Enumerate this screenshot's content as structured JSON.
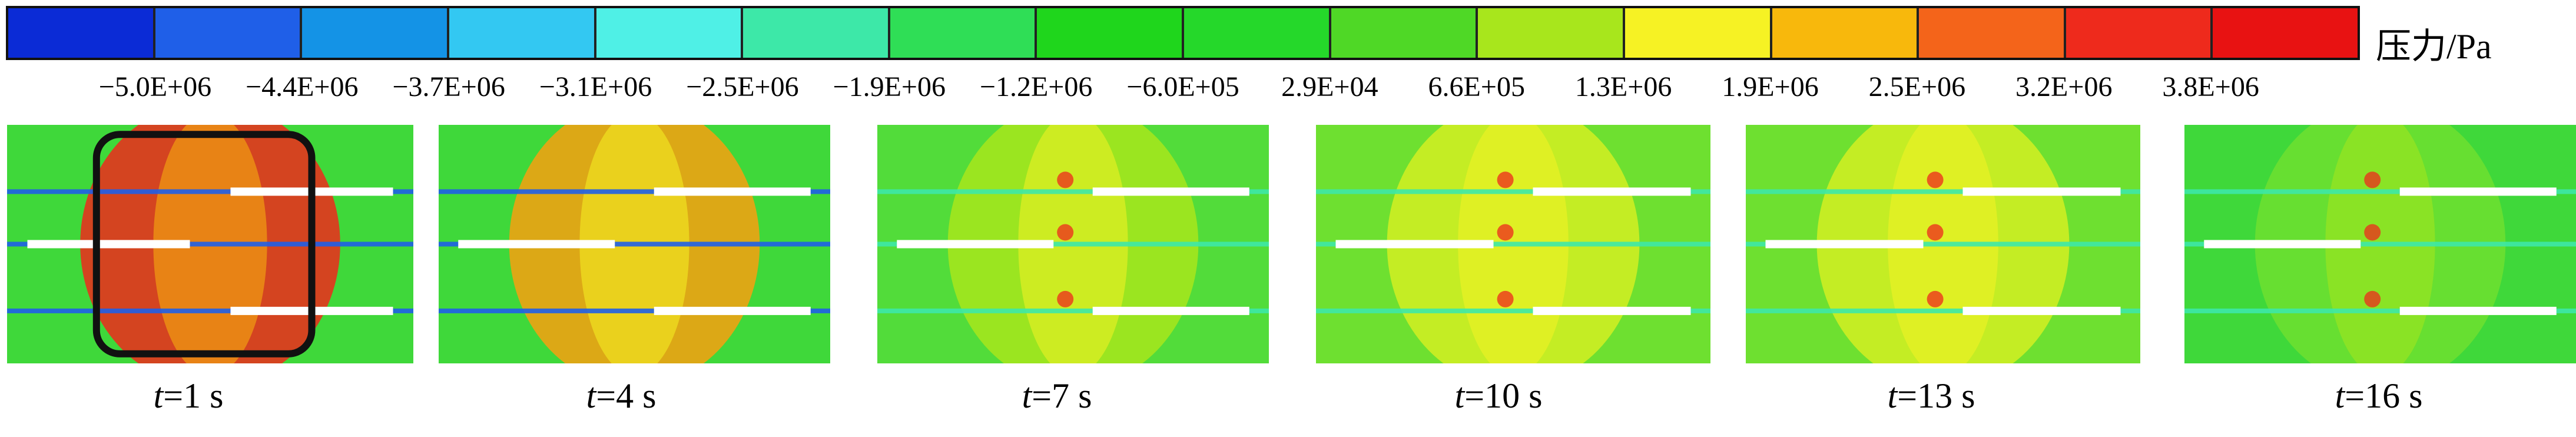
{
  "colorbar": {
    "unit": "压力/Pa",
    "colors": [
      "#0b2bd6",
      "#1f5fe8",
      "#1493e6",
      "#33c8f2",
      "#4ff0e6",
      "#3de8a8",
      "#2fde56",
      "#1fd61c",
      "#25d82a",
      "#4fd826",
      "#a8e61c",
      "#f6f224",
      "#f8b80c",
      "#f4641a",
      "#ee2a1c",
      "#e81212"
    ],
    "ticks": [
      "−5.0E+06",
      "−4.4E+06",
      "−3.7E+06",
      "−3.1E+06",
      "−2.5E+06",
      "−1.9E+06",
      "−1.2E+06",
      "−6.0E+05",
      "2.9E+04",
      "6.6E+05",
      "1.3E+06",
      "1.9E+06",
      "2.5E+06",
      "3.2E+06",
      "3.8E+06"
    ]
  },
  "panels": [
    {
      "t": "t",
      "rest": "=1 s",
      "theme": "red"
    },
    {
      "t": "t",
      "rest": "=4 s",
      "theme": "orange"
    },
    {
      "t": "t",
      "rest": "=7 s",
      "theme": "green"
    },
    {
      "t": "t",
      "rest": "=10 s",
      "theme": "yellowgreen"
    },
    {
      "t": "t",
      "rest": "=13 s",
      "theme": "yellowgreen"
    },
    {
      "t": "t",
      "rest": "=16 s",
      "theme": "green2"
    }
  ]
}
